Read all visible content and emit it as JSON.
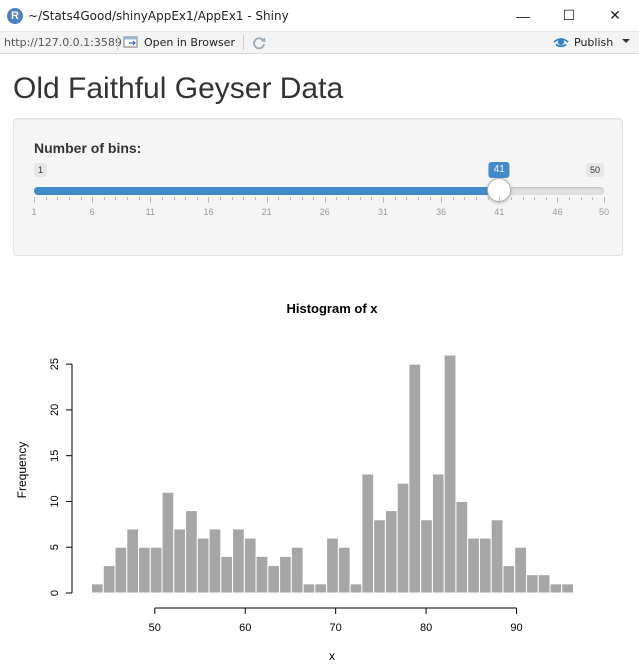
{
  "window": {
    "title": "~/Stats4Good/shinyAppEx1/AppEx1 - Shiny",
    "app_icon_letter": "R",
    "minimize_glyph": "—",
    "maximize_glyph": "☐",
    "close_glyph": "✕"
  },
  "toolbar": {
    "url": "http://127.0.0.1:3589",
    "open_in_browser_label": "Open in Browser",
    "publish_label": "Publish"
  },
  "page": {
    "title": "Old Faithful Geyser Data"
  },
  "slider": {
    "label": "Number of bins:",
    "min": 1,
    "max": 50,
    "value": 41,
    "min_label": "1",
    "max_label": "50",
    "value_label": "41",
    "tick_labels": [
      "1",
      "6",
      "11",
      "16",
      "21",
      "26",
      "31",
      "36",
      "41",
      "46",
      "50"
    ],
    "accent_color": "#428bca"
  },
  "chart_data": {
    "type": "bar",
    "title": "Histogram of x",
    "xlabel": "x",
    "ylabel": "Frequency",
    "bin_start": 43,
    "bin_width": 1.3,
    "values": [
      1,
      3,
      5,
      7,
      5,
      5,
      11,
      7,
      9,
      6,
      7,
      4,
      7,
      6,
      4,
      3,
      4,
      5,
      1,
      1,
      6,
      5,
      1,
      13,
      8,
      9,
      12,
      25,
      8,
      13,
      26,
      10,
      6,
      6,
      8,
      3,
      5,
      2,
      2,
      1,
      1
    ],
    "x_ticks": [
      50,
      60,
      70,
      80,
      90
    ],
    "y_ticks": [
      0,
      5,
      10,
      15,
      20,
      25
    ],
    "xlim": [
      43,
      96.3
    ],
    "ylim": [
      0,
      26
    ],
    "bar_color": "#a6a6a6",
    "grid": false
  }
}
